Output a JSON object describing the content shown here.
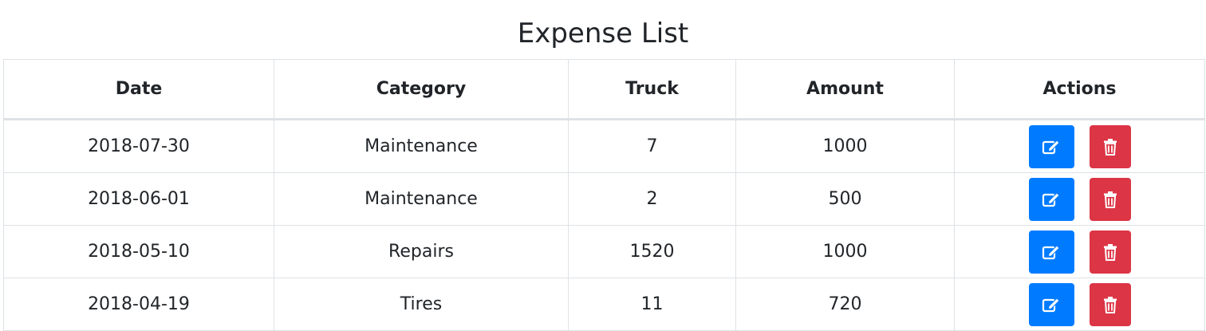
{
  "page": {
    "title": "Expense List"
  },
  "table": {
    "headers": [
      "Date",
      "Category",
      "Truck",
      "Amount",
      "Actions"
    ],
    "rows": [
      {
        "date": "2018-07-30",
        "category": "Maintenance",
        "truck": "7",
        "amount": "1000"
      },
      {
        "date": "2018-06-01",
        "category": "Maintenance",
        "truck": "2",
        "amount": "500"
      },
      {
        "date": "2018-05-10",
        "category": "Repairs",
        "truck": "1520",
        "amount": "1000"
      },
      {
        "date": "2018-04-19",
        "category": "Tires",
        "truck": "11",
        "amount": "720"
      }
    ]
  },
  "icons": {
    "edit": "edit-icon",
    "delete": "trash-icon"
  },
  "colors": {
    "edit_button": "#007bff",
    "delete_button": "#dc3545",
    "border": "#dee2e6",
    "text": "#212529"
  }
}
